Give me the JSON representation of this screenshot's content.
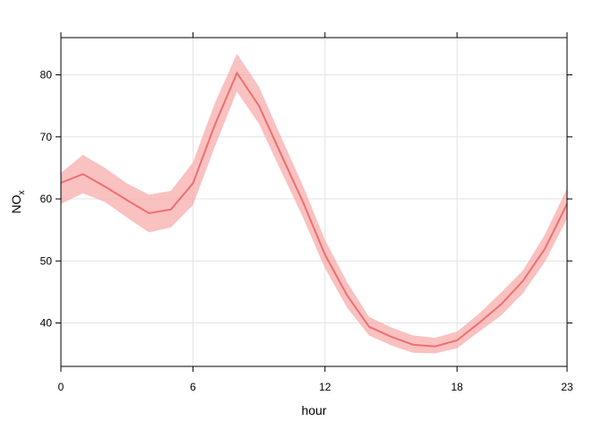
{
  "chart_data": {
    "type": "line",
    "title": "",
    "xlabel": "hour",
    "ylabel": "NO",
    "ylabel_subscript": "x",
    "xlim": [
      0,
      23
    ],
    "ylim": [
      33,
      86
    ],
    "x_ticks": [
      0,
      6,
      12,
      18,
      23
    ],
    "y_ticks": [
      40,
      50,
      60,
      70,
      80
    ],
    "grid": true,
    "line_color": "#ee6f6f",
    "band_color": "#f8a6a6",
    "series": [
      {
        "x": [
          0,
          1,
          2,
          3,
          4,
          5,
          6,
          7,
          8,
          9,
          10,
          11,
          12,
          13,
          14,
          15,
          16,
          17,
          18,
          19,
          20,
          21,
          22,
          23
        ],
        "values": [
          62.6,
          64.0,
          62.0,
          59.8,
          57.7,
          58.3,
          62.5,
          72.0,
          80.3,
          75.0,
          67.2,
          59.5,
          51.0,
          44.5,
          39.4,
          37.8,
          36.5,
          36.2,
          37.2,
          40.0,
          43.0,
          46.8,
          52.0,
          59.2
        ],
        "lower": [
          59.2,
          60.9,
          59.5,
          57.0,
          54.6,
          55.4,
          59.0,
          68.5,
          77.3,
          72.1,
          64.5,
          57.0,
          48.8,
          42.5,
          38.0,
          36.4,
          35.2,
          35.1,
          35.9,
          38.6,
          41.2,
          44.8,
          49.9,
          56.8
        ],
        "upper": [
          64.2,
          67.1,
          65.0,
          62.5,
          60.7,
          61.3,
          65.9,
          75.5,
          83.4,
          78.1,
          70.0,
          62.1,
          53.4,
          46.6,
          41.0,
          39.3,
          38.0,
          37.6,
          38.6,
          41.5,
          44.9,
          48.5,
          54.3,
          61.7
        ]
      }
    ]
  }
}
